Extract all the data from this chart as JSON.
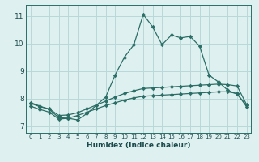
{
  "bg_color": "#dff0f0",
  "grid_color": "#b8d8d8",
  "line_color": "#2a6e65",
  "xlabel": "Humidex (Indice chaleur)",
  "xlim": [
    -0.5,
    23.5
  ],
  "ylim": [
    6.75,
    11.4
  ],
  "yticks": [
    7,
    8,
    9,
    10,
    11
  ],
  "xticks": [
    0,
    1,
    2,
    3,
    4,
    5,
    6,
    7,
    8,
    9,
    10,
    11,
    12,
    13,
    14,
    15,
    16,
    17,
    18,
    19,
    20,
    21,
    22,
    23
  ],
  "line1_x": [
    0,
    1,
    2,
    3,
    4,
    5,
    6,
    7,
    8,
    9,
    10,
    11,
    12,
    13,
    14,
    15,
    16,
    17,
    18,
    19,
    20,
    21,
    22,
    23
  ],
  "line1_y": [
    7.85,
    7.72,
    7.6,
    7.3,
    7.28,
    7.22,
    7.45,
    7.75,
    8.05,
    8.85,
    9.5,
    9.95,
    11.05,
    10.6,
    9.95,
    10.3,
    10.2,
    10.25,
    9.9,
    8.85,
    8.6,
    8.3,
    8.15,
    7.75
  ],
  "line2_x": [
    0,
    1,
    2,
    3,
    4,
    5,
    6,
    7,
    8,
    9,
    10,
    11,
    12,
    13,
    14,
    15,
    16,
    17,
    18,
    19,
    20,
    21,
    22,
    23
  ],
  "line2_y": [
    7.82,
    7.7,
    7.62,
    7.38,
    7.4,
    7.48,
    7.62,
    7.76,
    7.9,
    8.05,
    8.18,
    8.28,
    8.36,
    8.38,
    8.4,
    8.42,
    8.44,
    8.46,
    8.48,
    8.5,
    8.52,
    8.5,
    8.45,
    7.78
  ],
  "line3_x": [
    0,
    1,
    2,
    3,
    4,
    5,
    6,
    7,
    8,
    9,
    10,
    11,
    12,
    13,
    14,
    15,
    16,
    17,
    18,
    19,
    20,
    21,
    22,
    23
  ],
  "line3_y": [
    7.72,
    7.6,
    7.5,
    7.25,
    7.28,
    7.38,
    7.5,
    7.62,
    7.74,
    7.84,
    7.94,
    8.02,
    8.08,
    8.1,
    8.12,
    8.14,
    8.16,
    8.18,
    8.2,
    8.22,
    8.24,
    8.24,
    8.18,
    7.7
  ]
}
